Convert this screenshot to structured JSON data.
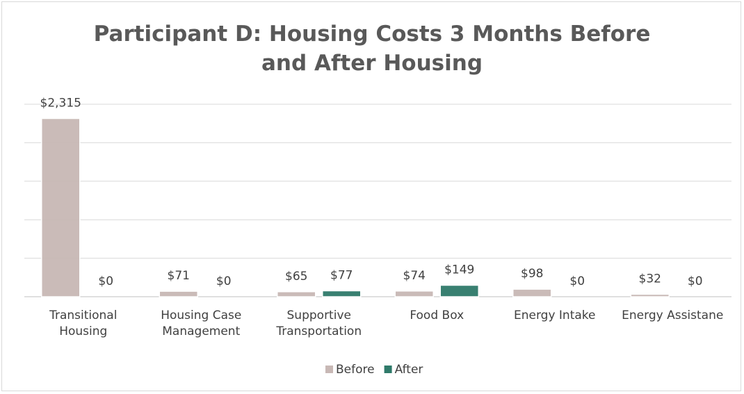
{
  "chart_data": {
    "type": "bar",
    "title": "Participant D: Housing Costs 3 Months Before and After Housing",
    "categories": [
      "Transitional Housing",
      "Housing Case Management",
      "Supportive Transportation",
      "Food Box",
      "Energy Intake",
      "Energy Assistane"
    ],
    "series": [
      {
        "name": "Before",
        "color": "#c8b8b5",
        "values": [
          2315,
          71,
          65,
          74,
          98,
          32
        ],
        "value_labels": [
          "$2,315",
          "$71",
          "$65",
          "$74",
          "$98",
          "$32"
        ]
      },
      {
        "name": "After",
        "color": "#2f7a6a",
        "values": [
          0,
          0,
          77,
          149,
          0,
          0
        ],
        "value_labels": [
          "$0",
          "$0",
          "$77",
          "$149",
          "$0",
          "$0"
        ]
      }
    ],
    "ylim": [
      0,
      2500
    ],
    "yticks": [
      0,
      500,
      1000,
      1500,
      2000,
      2500
    ],
    "grid": true,
    "legend": "bottom"
  }
}
